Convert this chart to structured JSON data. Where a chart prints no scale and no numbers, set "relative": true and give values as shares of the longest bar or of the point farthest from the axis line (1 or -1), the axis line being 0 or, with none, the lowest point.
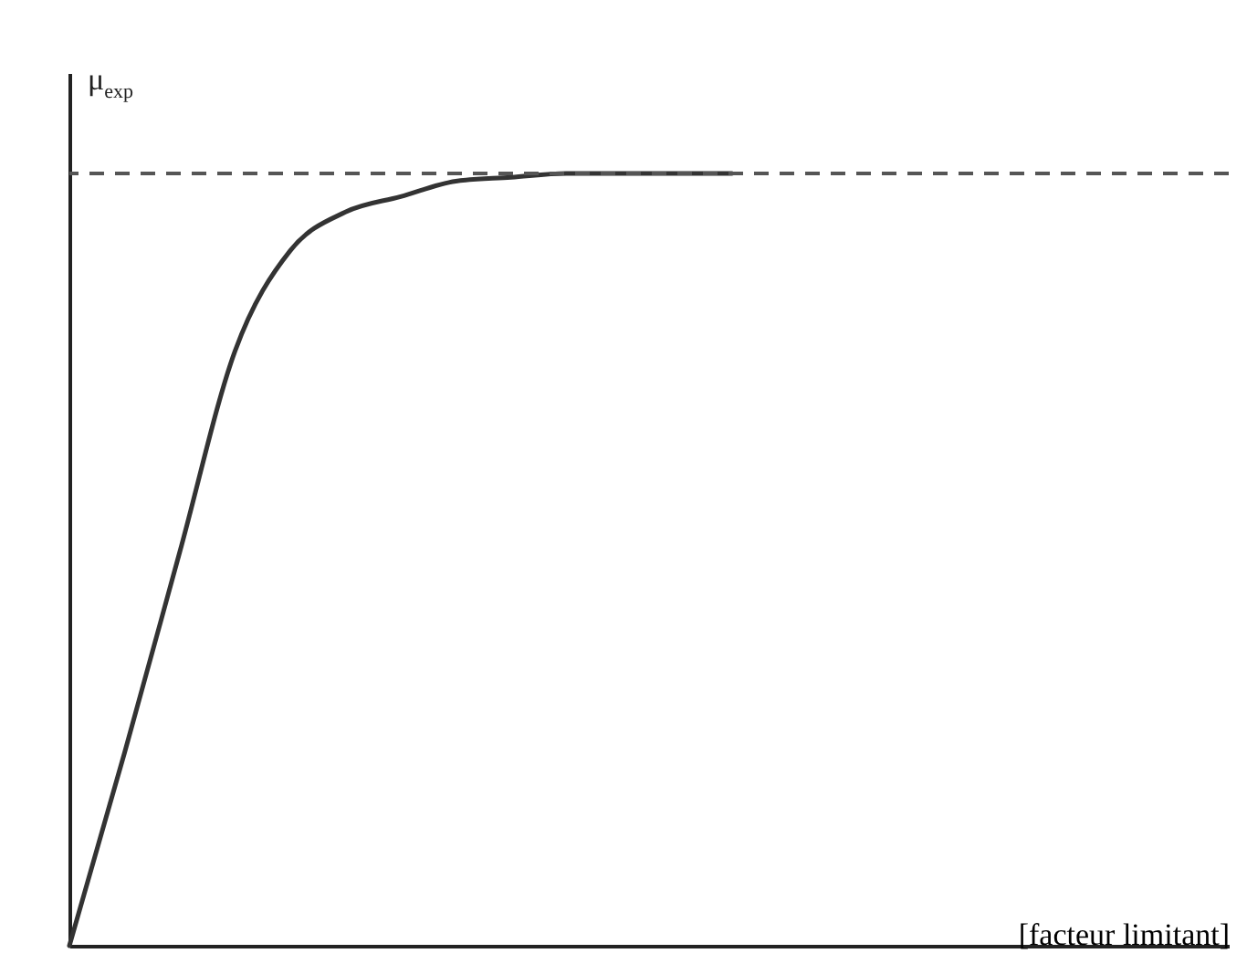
{
  "chart_data": {
    "type": "line",
    "relative": true,
    "xlabel": "[facteur limitant]",
    "ylabel": "μ$_{exp}$",
    "categories": [
      null,
      null,
      null,
      null,
      null,
      null,
      null,
      null,
      null,
      null,
      null,
      null,
      null,
      null,
      null,
      null,
      null,
      null,
      null,
      null,
      null,
      null
    ],
    "series": [
      {
        "color": "#333333",
        "values": [
          0,
          0.25,
          0.51,
          0.77,
          0.9,
          0.95,
          0.97,
          0.99,
          0.995,
          1,
          1,
          1,
          1,
          null,
          null,
          null,
          null,
          null,
          null,
          null,
          null,
          null
        ]
      }
    ],
    "ref_lines": [
      {
        "axis": "y",
        "value": 1,
        "color": "#555555",
        "line_style": "dashed"
      }
    ],
    "line_style": "solid",
    "marker": "none",
    "grid": false,
    "tick_labels": false
  }
}
